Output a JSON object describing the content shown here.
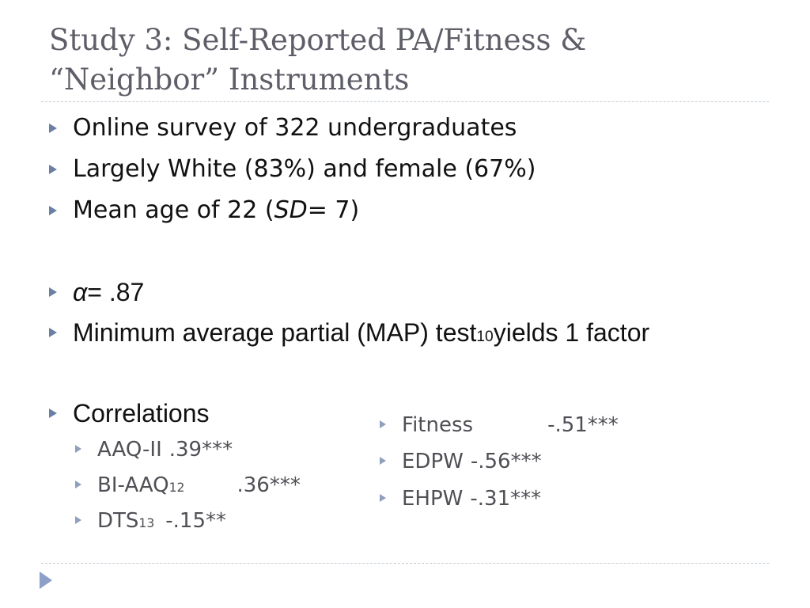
{
  "title": {
    "line1": "Study 3: Self-Reported PA/Fitness &",
    "line2": "“Neighbor” Instruments"
  },
  "bullets": {
    "survey": "Online survey of 322 undergraduates",
    "demographics": "Largely White (83%) and female (67%)",
    "age_prefix": "Mean age of 22 (",
    "age_sd": "SD",
    "age_suffix": " = 7)",
    "alpha_symbol": "α",
    "alpha_value": " = .87",
    "map_prefix": "Minimum average partial (MAP) test",
    "map_ref": "10",
    "map_suffix": " yields 1 factor",
    "correlations": "Correlations"
  },
  "correlations_left": [
    {
      "label": "AAQ-II",
      "ref": "",
      "value": ".39***"
    },
    {
      "label": "BI-AAQ",
      "ref": "12",
      "value": ".36***"
    },
    {
      "label": "DTS",
      "ref": "13",
      "value": "-.15**"
    }
  ],
  "correlations_right": [
    {
      "label": "Fitness",
      "value": "-.51***"
    },
    {
      "label": "EDPW",
      "value": "-.56***"
    },
    {
      "label": "EHPW",
      "value": "-.31***"
    }
  ]
}
